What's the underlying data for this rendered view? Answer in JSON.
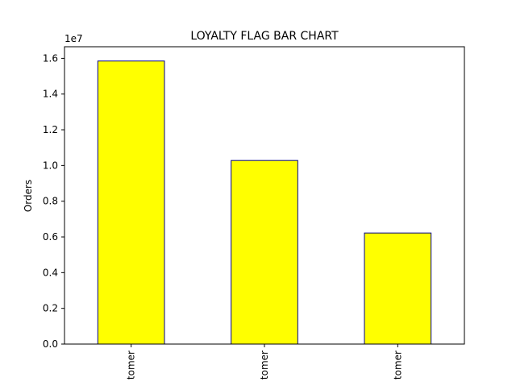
{
  "chart_data": {
    "type": "bar",
    "title": "LOYALTY FLAG BAR CHART",
    "xlabel": "",
    "ylabel": "Orders",
    "y_offset_label": "1e7",
    "categories": [
      "tomer",
      "tomer",
      "tomer"
    ],
    "values": [
      15850000,
      10280000,
      6220000
    ],
    "ylim": [
      0,
      16650000
    ],
    "y_ticks": [
      0,
      2000000,
      4000000,
      6000000,
      8000000,
      10000000,
      12000000,
      14000000,
      16000000
    ],
    "y_tick_labels": [
      "0.0",
      "0.2",
      "0.4",
      "0.6",
      "0.8",
      "1.0",
      "1.2",
      "1.4",
      "1.6"
    ],
    "x_tick_rotation_deg": 90,
    "grid": false,
    "legend": "none",
    "colors": {
      "bar_fill": "#ffff00",
      "bar_edge": "#00008b"
    }
  }
}
